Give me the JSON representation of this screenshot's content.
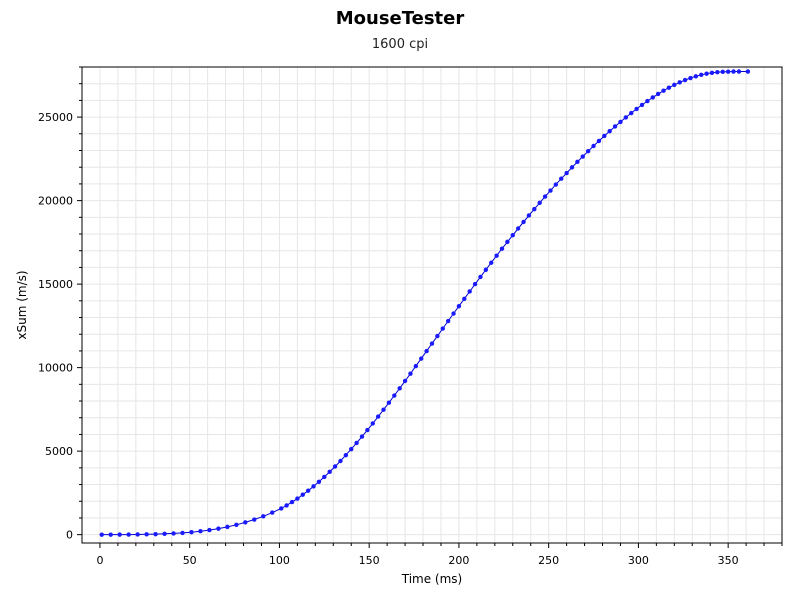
{
  "chart_data": {
    "type": "scatter",
    "title": "MouseTester",
    "subtitle": "1600 cpi",
    "xlabel": "Time (ms)",
    "ylabel": "xSum (m/s)",
    "xlim": [
      -10,
      380
    ],
    "ylim": [
      -500,
      28000
    ],
    "xticks": [
      0,
      50,
      100,
      150,
      200,
      250,
      300,
      350
    ],
    "yticks": [
      0,
      5000,
      10000,
      15000,
      20000,
      25000
    ],
    "grid": true,
    "colors": {
      "marker": "#1a1aff",
      "line": "#0000cc",
      "grid": "#e6e6e6",
      "axis": "#000000"
    },
    "series": [
      {
        "x": [
          1,
          6,
          11,
          16,
          21,
          26,
          31,
          36,
          41,
          46,
          51,
          56,
          61,
          66,
          71,
          76,
          81,
          86,
          91,
          96,
          101,
          104,
          107,
          110,
          113,
          116,
          119,
          122,
          125,
          128,
          131,
          134,
          137,
          140,
          143,
          146,
          149,
          152,
          155,
          158,
          161,
          164,
          167,
          170,
          173,
          176,
          179,
          182,
          185,
          188,
          191,
          194,
          197,
          200,
          203,
          206,
          209,
          212,
          215,
          218,
          221,
          224,
          227,
          230,
          233,
          236,
          239,
          242,
          245,
          248,
          251,
          254,
          257,
          260,
          263,
          266,
          269,
          272,
          275,
          278,
          281,
          284,
          287,
          290,
          293,
          296,
          299,
          302,
          305,
          308,
          311,
          314,
          317,
          320,
          323,
          326,
          329,
          332,
          335,
          338,
          341,
          344,
          347,
          350,
          353,
          356,
          361
        ],
        "y": [
          0,
          0,
          2,
          5,
          10,
          18,
          30,
          48,
          72,
          105,
          148,
          205,
          275,
          360,
          465,
          590,
          735,
          905,
          1100,
          1320,
          1570,
          1750,
          1950,
          2160,
          2390,
          2630,
          2890,
          3165,
          3455,
          3760,
          4080,
          4410,
          4760,
          5120,
          5490,
          5870,
          6260,
          6660,
          7070,
          7480,
          7900,
          8330,
          8760,
          9200,
          9640,
          10090,
          10540,
          10990,
          11440,
          11890,
          12340,
          12790,
          13240,
          13680,
          14120,
          14560,
          15000,
          15430,
          15860,
          16280,
          16700,
          17120,
          17530,
          17930,
          18330,
          18720,
          19110,
          19490,
          19870,
          20240,
          20600,
          20960,
          21310,
          21650,
          21990,
          22320,
          22640,
          22960,
          23270,
          23570,
          23870,
          24160,
          24440,
          24710,
          24980,
          25240,
          25490,
          25730,
          25960,
          26180,
          26390,
          26580,
          26760,
          26930,
          27080,
          27220,
          27340,
          27440,
          27530,
          27600,
          27650,
          27690,
          27710,
          27720,
          27730,
          27730,
          27730
        ]
      }
    ]
  }
}
